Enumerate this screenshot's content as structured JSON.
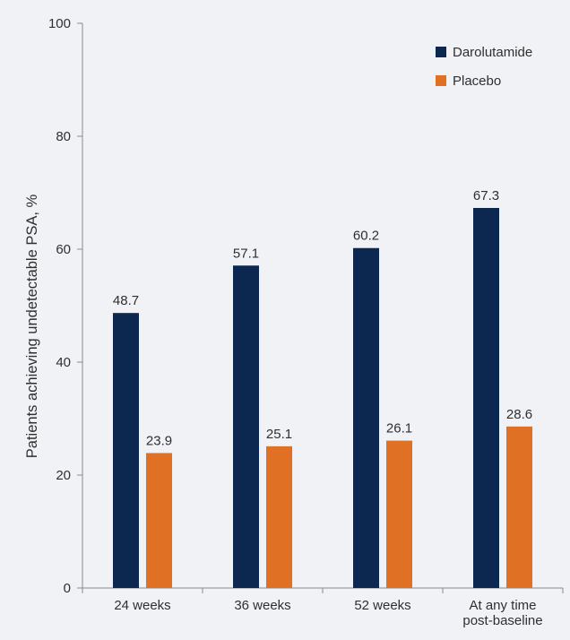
{
  "chart_data": {
    "type": "bar",
    "title": "",
    "xlabel": "",
    "ylabel": "Patients achieving undetectable PSA, %",
    "ylim": [
      0,
      100
    ],
    "yticks": [
      0,
      20,
      40,
      60,
      80,
      100
    ],
    "grid": false,
    "legend_position": "top-right",
    "categories": [
      [
        "24 weeks"
      ],
      [
        "36 weeks"
      ],
      [
        "52 weeks"
      ],
      [
        "At any time",
        "post-baseline"
      ]
    ],
    "series": [
      {
        "name": "Darolutamide",
        "color": "#0d2850",
        "values": [
          48.7,
          57.1,
          60.2,
          67.3
        ]
      },
      {
        "name": "Placebo",
        "color": "#e07024",
        "values": [
          23.9,
          25.1,
          26.1,
          28.6
        ]
      }
    ],
    "data_labels": [
      [
        "48.7",
        "57.1",
        "60.2",
        "67.3"
      ],
      [
        "23.9",
        "25.1",
        "26.1",
        "28.6"
      ]
    ]
  }
}
